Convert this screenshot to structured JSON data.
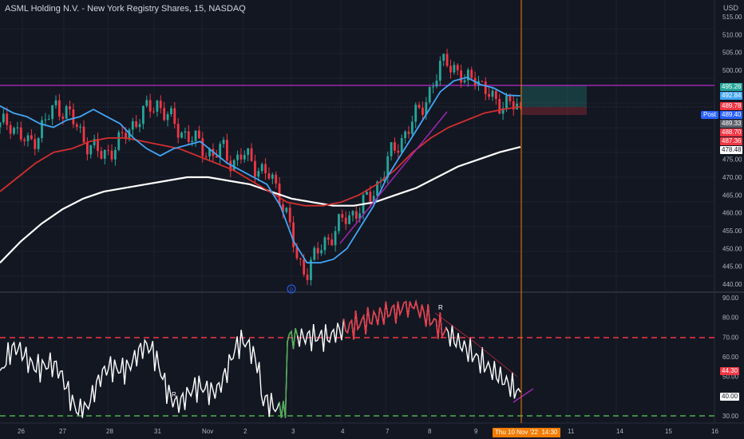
{
  "header": {
    "title": "ASML Holding N.V. - New York Registry Shares, 15, NASDAQ",
    "currency": "USD"
  },
  "price_axis": {
    "ticks": [
      "515.00",
      "510.00",
      "505.00",
      "500.00",
      "495.00",
      "490.00",
      "485.00",
      "480.00",
      "475.00",
      "470.00",
      "465.00",
      "460.00",
      "455.00",
      "450.00",
      "445.00",
      "440.00"
    ]
  },
  "oscillator_axis": {
    "ticks": [
      "90.00",
      "80.00",
      "70.00",
      "60.00",
      "50.00",
      "40.00",
      "30.00"
    ]
  },
  "time_axis": {
    "ticks": [
      "26",
      "27",
      "28",
      "31",
      "Nov",
      "2",
      "3",
      "4",
      "7",
      "8",
      "9",
      "11",
      "14",
      "15",
      "16"
    ],
    "crosshair_label": "Thu 10 Nov '22",
    "crosshair_time": "14:30"
  },
  "price_tags": [
    {
      "label": "495.26",
      "color": "#26a69a"
    },
    {
      "label": "492.84",
      "color": "#42a5f5"
    },
    {
      "label": "489.78",
      "color": "#f23645"
    },
    {
      "label": "489.40",
      "color": "#2962ff"
    },
    {
      "label": "489.33",
      "color": "#5d606b"
    },
    {
      "label": "488.70",
      "color": "#f23645"
    },
    {
      "label": "487.36",
      "color": "#f23645"
    },
    {
      "label": "478.48",
      "color": "#ffffff"
    }
  ],
  "post_badge": "Post",
  "osc_tags": [
    {
      "label": "44.30",
      "color": "#f23645"
    },
    {
      "label": "40.00",
      "color": "#ffffff"
    }
  ],
  "annotations": {
    "r_markers": [
      "R",
      "R"
    ],
    "circle_marker": "D"
  },
  "colors": {
    "background": "#131722",
    "up": "#26a69a",
    "down": "#f23645",
    "ma_fast": "#42a5f5",
    "ma_mid": "#d32f2f",
    "ma_slow": "#ffffff",
    "resistance": "#9c27b0",
    "osc_line": "#ffffff",
    "overbought": "#f23645",
    "oversold": "#4caf50",
    "crosshair": "#f57c00"
  },
  "chart_data": {
    "type": "candlestick",
    "ylim": [
      437,
      517
    ],
    "osc_ylim": [
      28,
      92
    ],
    "x_labels": [
      "26",
      "27",
      "28",
      "31",
      "Nov",
      "2",
      "3",
      "4",
      "7",
      "8",
      "9",
      "11",
      "14",
      "15",
      "16"
    ],
    "close_path": [
      484,
      486,
      482,
      479,
      482,
      486,
      490,
      489,
      485,
      481,
      478,
      476,
      478,
      480,
      484,
      487,
      489,
      491,
      487,
      484,
      482,
      480,
      478,
      476,
      478,
      474,
      476,
      475,
      472,
      470,
      466,
      458,
      446,
      444,
      448,
      452,
      455,
      458,
      460,
      462,
      465,
      470,
      476,
      480,
      484,
      488,
      493,
      498,
      504,
      500,
      496,
      500,
      494,
      492,
      491,
      490,
      489.4
    ],
    "ma_fast": [
      490,
      488,
      487,
      485,
      484,
      486,
      487,
      489,
      487,
      485,
      481,
      478,
      476,
      478,
      479,
      480,
      477,
      474,
      472,
      470,
      468,
      462,
      452,
      446,
      446,
      447,
      450,
      456,
      462,
      470,
      476,
      482,
      488,
      494,
      497,
      498,
      496,
      495,
      493,
      492.84
    ],
    "ma_mid": [
      466,
      470,
      474,
      477,
      478,
      480,
      481,
      481,
      480,
      479,
      478,
      476,
      474,
      472,
      469,
      466,
      463,
      462,
      462,
      463,
      465,
      468,
      472,
      477,
      481,
      484,
      486,
      488,
      489,
      489.78
    ],
    "ma_slow": [
      446,
      452,
      457,
      461,
      464,
      466,
      467,
      468,
      469,
      470,
      470,
      469,
      468,
      466,
      464,
      463,
      462,
      462,
      463,
      465,
      467,
      470,
      473,
      475,
      477,
      478.48
    ],
    "resistance_level": 495.26,
    "osc_levels": {
      "overbought": 70,
      "oversold": 30
    },
    "osc_last": 40
  }
}
